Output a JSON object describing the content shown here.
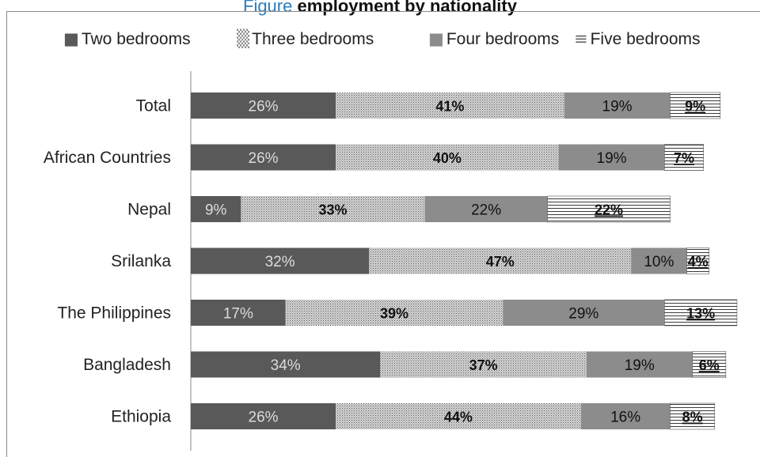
{
  "page": {
    "title_lead": "Figure",
    "title_visible": "employment by nationality"
  },
  "colors": {
    "two_bedrooms": "#595959",
    "three_bedrooms": "#c8c8c8",
    "four_bedrooms": "#8c8c8c",
    "five_bedrooms": "#ffffff",
    "axis": "#8a8a8a",
    "label_text": "#222222"
  },
  "chart_data": {
    "type": "bar",
    "orientation": "horizontal",
    "stacked": true,
    "percent_stacked": true,
    "title": "",
    "xlabel": "",
    "ylabel": "",
    "xlim": [
      0,
      100
    ],
    "grid": false,
    "legend_position": "top",
    "categories": [
      "Total",
      "African Countries",
      "Nepal",
      "Srilanka",
      "The Philippines",
      "Bangladesh",
      "Ethiopia"
    ],
    "series": [
      {
        "name": "Two bedrooms",
        "pattern": "solid-dark",
        "bold_labels": false,
        "values": [
          26,
          26,
          9,
          32,
          17,
          34,
          26
        ]
      },
      {
        "name": "Three bedrooms",
        "pattern": "fine-dots",
        "bold_labels": true,
        "values": [
          41,
          40,
          33,
          47,
          39,
          37,
          44
        ]
      },
      {
        "name": "Four bedrooms",
        "pattern": "solid-medium",
        "bold_labels": false,
        "values": [
          19,
          19,
          22,
          10,
          29,
          19,
          16
        ]
      },
      {
        "name": "Five bedrooms",
        "pattern": "horizontal-lines",
        "bold_labels": true,
        "values": [
          9,
          7,
          22,
          4,
          13,
          6,
          8
        ]
      }
    ],
    "labels": [
      [
        "26%",
        "41%",
        "19%",
        "9%"
      ],
      [
        "26%",
        "40%",
        "19%",
        "7%"
      ],
      [
        "9%",
        "33%",
        "22%",
        "22%"
      ],
      [
        "32%",
        "47%",
        "10%",
        "4%"
      ],
      [
        "17%",
        "39%",
        "29%",
        "13%"
      ],
      [
        "34%",
        "37%",
        "19%",
        "6%"
      ],
      [
        "26%",
        "44%",
        "16%",
        "8%"
      ]
    ]
  }
}
